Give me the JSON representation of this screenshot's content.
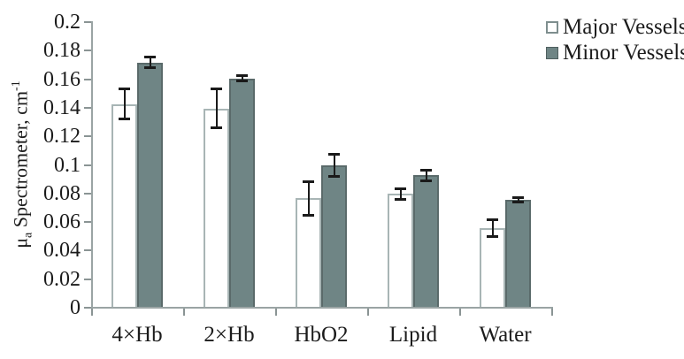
{
  "chart_data": {
    "type": "bar",
    "title": "",
    "xlabel": "",
    "ylabel": {
      "mu": "μ",
      "sub": "a",
      "text": " Spectrometer, cm",
      "sup": "-1"
    },
    "categories": [
      "4×Hb",
      "2×Hb",
      "HbO2",
      "Lipid",
      "Water"
    ],
    "series": [
      {
        "name": "Major Vessels",
        "values": [
          0.142,
          0.139,
          0.076,
          0.079,
          0.055
        ],
        "errors": [
          0.011,
          0.014,
          0.012,
          0.004,
          0.006
        ],
        "fill": "#ffffff",
        "border": "#a8b5b5"
      },
      {
        "name": "Minor Vessels",
        "values": [
          0.171,
          0.16,
          0.099,
          0.092,
          0.075
        ],
        "errors": [
          0.004,
          0.002,
          0.008,
          0.004,
          0.002
        ],
        "fill": "#6f8585",
        "border": "#5a6a6a"
      }
    ],
    "ylim": [
      0,
      0.2
    ],
    "yticks": [
      0,
      0.02,
      0.04,
      0.06,
      0.08,
      0.1,
      0.12,
      0.14,
      0.16,
      0.18,
      0.2
    ],
    "ytick_labels": [
      "0",
      "0.02",
      "0.04",
      "0.06",
      "0.08",
      "0.1",
      "0.12",
      "0.14",
      "0.16",
      "0.18",
      "0.2"
    ],
    "grid": false,
    "legend_position": "top-right",
    "colors": {
      "axis": "#9aa4a4",
      "tick": "#8a9494",
      "error_bar": "#1a1a1a",
      "text": "#1b1b1b"
    }
  }
}
